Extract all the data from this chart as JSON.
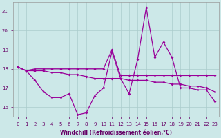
{
  "xlabel": "Windchill (Refroidissement éolien,°C)",
  "hours": [
    0,
    1,
    2,
    3,
    4,
    5,
    6,
    7,
    8,
    9,
    10,
    11,
    12,
    13,
    14,
    15,
    16,
    17,
    18,
    19,
    20,
    21,
    22,
    23
  ],
  "line1": [
    18.1,
    17.9,
    18.0,
    18.0,
    18.0,
    18.0,
    18.0,
    18.0,
    18.0,
    18.0,
    18.0,
    19.0,
    17.65,
    17.65,
    17.65,
    17.65,
    17.65,
    17.65,
    17.65,
    17.65,
    17.65,
    17.65,
    17.65,
    17.65
  ],
  "line2": [
    18.1,
    17.9,
    17.9,
    17.9,
    17.8,
    17.8,
    17.7,
    17.7,
    17.6,
    17.5,
    17.5,
    17.5,
    17.5,
    17.4,
    17.4,
    17.4,
    17.3,
    17.3,
    17.2,
    17.2,
    17.1,
    17.1,
    17.0,
    16.8
  ],
  "line3": [
    18.1,
    17.9,
    17.4,
    16.8,
    16.5,
    16.5,
    16.7,
    15.6,
    15.7,
    16.6,
    17.0,
    18.9,
    17.5,
    16.7,
    18.5,
    21.2,
    18.6,
    19.4,
    18.6,
    17.0,
    17.0,
    16.9,
    16.9,
    16.3
  ],
  "line_colors": [
    "#990099",
    "#990099",
    "#990099"
  ],
  "bg_color": "#cce8e8",
  "grid_color": "#aacccc",
  "ylim": [
    15.5,
    21.5
  ],
  "yticks": [
    16,
    17,
    18,
    19,
    20,
    21
  ],
  "tick_color": "#660066",
  "label_color": "#660066"
}
